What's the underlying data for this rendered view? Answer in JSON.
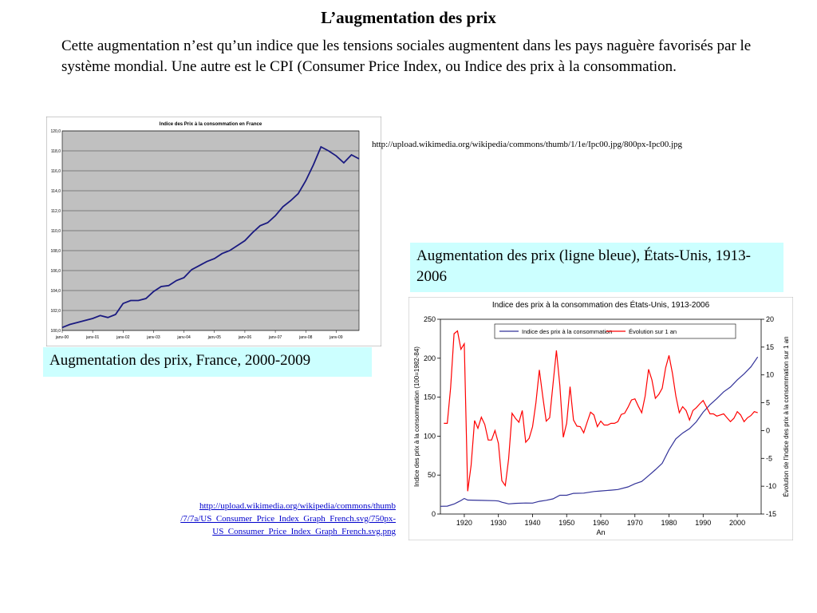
{
  "slide": {
    "title": "L’augmentation des prix",
    "intro": "Cette augmentation n’est qu’un indice que les tensions sociales augmentent dans les pays naguère favorisés par le système mondial. Une autre est le CPI (Consumer Price Index, ou Indice des prix à la consommation.",
    "url_france": "http://upload.wikimedia.org/wikipedia/commons/thumb/1/1e/Ipc00.jpg/800px-Ipc00.jpg",
    "url_us_lines": [
      "http://upload.wikimedia.org/wikipedia/commons/thumb",
      "/7/7a/US_Consumer_Price_Index_Graph_French.svg/750px-",
      "US_Consumer_Price_Index_Graph_French.svg.png"
    ],
    "caption_france": "Augmentation des prix, France, 2000-2009",
    "caption_us": "Augmentation des prix (ligne bleue), États-Unis, 1913-2006"
  },
  "chart_data": [
    {
      "type": "line",
      "title": "Indice des Prix à la consommation en France",
      "ylim": [
        100,
        120
      ],
      "y_ticks": [
        "100,0",
        "102,0",
        "104,0",
        "106,0",
        "108,0",
        "110,0",
        "112,0",
        "114,0",
        "116,0",
        "118,0",
        "120,0"
      ],
      "x_ticks": [
        "janv-00",
        "janv-01",
        "janv-02",
        "janv-03",
        "janv-04",
        "janv-05",
        "janv-06",
        "janv-07",
        "janv-08",
        "janv-09"
      ],
      "x_range": [
        2000,
        2009.75
      ],
      "grid": true,
      "background": "#c0c0c0",
      "series": [
        {
          "color": "#1a1a80",
          "points": [
            [
              2000.0,
              100.3
            ],
            [
              2000.25,
              100.6
            ],
            [
              2000.5,
              100.8
            ],
            [
              2000.75,
              101.0
            ],
            [
              2001.0,
              101.2
            ],
            [
              2001.25,
              101.5
            ],
            [
              2001.5,
              101.3
            ],
            [
              2001.75,
              101.6
            ],
            [
              2002.0,
              102.7
            ],
            [
              2002.25,
              103.0
            ],
            [
              2002.5,
              103.0
            ],
            [
              2002.75,
              103.2
            ],
            [
              2003.0,
              103.9
            ],
            [
              2003.25,
              104.4
            ],
            [
              2003.5,
              104.5
            ],
            [
              2003.75,
              105.0
            ],
            [
              2004.0,
              105.3
            ],
            [
              2004.25,
              106.1
            ],
            [
              2004.5,
              106.5
            ],
            [
              2004.75,
              106.9
            ],
            [
              2005.0,
              107.2
            ],
            [
              2005.25,
              107.7
            ],
            [
              2005.5,
              108.0
            ],
            [
              2005.75,
              108.5
            ],
            [
              2006.0,
              109.0
            ],
            [
              2006.25,
              109.8
            ],
            [
              2006.5,
              110.5
            ],
            [
              2006.75,
              110.8
            ],
            [
              2007.0,
              111.5
            ],
            [
              2007.25,
              112.4
            ],
            [
              2007.5,
              113.0
            ],
            [
              2007.75,
              113.7
            ],
            [
              2008.0,
              115.0
            ],
            [
              2008.25,
              116.6
            ],
            [
              2008.5,
              118.4
            ],
            [
              2008.75,
              118.0
            ],
            [
              2009.0,
              117.5
            ],
            [
              2009.25,
              116.8
            ],
            [
              2009.5,
              117.6
            ],
            [
              2009.75,
              117.2
            ]
          ]
        }
      ]
    },
    {
      "type": "line",
      "title": "Indice des prix à la consommation des États-Unis, 1913-2006",
      "xlabel": "An",
      "ylabel": "Indice des prix à la consommation (100=1982-84)",
      "ylabel_right": "Évolution de l'indice des prix à la consommation sur 1 an",
      "xlim": [
        1913,
        2007
      ],
      "ylim": [
        0,
        250
      ],
      "ylim_right": [
        -15,
        20
      ],
      "x_ticks": [
        1920,
        1930,
        1940,
        1950,
        1960,
        1970,
        1980,
        1990,
        2000
      ],
      "y_ticks": [
        0,
        50,
        100,
        150,
        200,
        250
      ],
      "y_ticks_right": [
        -15,
        -10,
        -5,
        0,
        5,
        10,
        15,
        20
      ],
      "legend_position": "top",
      "series": [
        {
          "name": "Indice des prix à la consommation",
          "color": "#333399",
          "axis": "left",
          "points": [
            [
              1913,
              9.9
            ],
            [
              1915,
              10.1
            ],
            [
              1917,
              12.8
            ],
            [
              1918,
              15.1
            ],
            [
              1919,
              17.3
            ],
            [
              1920,
              20.0
            ],
            [
              1921,
              17.9
            ],
            [
              1925,
              17.5
            ],
            [
              1929,
              17.1
            ],
            [
              1930,
              16.7
            ],
            [
              1931,
              15.2
            ],
            [
              1933,
              13.0
            ],
            [
              1935,
              13.7
            ],
            [
              1938,
              14.1
            ],
            [
              1940,
              14.0
            ],
            [
              1942,
              16.3
            ],
            [
              1944,
              17.6
            ],
            [
              1946,
              19.5
            ],
            [
              1948,
              24.1
            ],
            [
              1950,
              24.1
            ],
            [
              1952,
              26.5
            ],
            [
              1955,
              26.8
            ],
            [
              1958,
              28.9
            ],
            [
              1960,
              29.6
            ],
            [
              1963,
              30.6
            ],
            [
              1965,
              31.5
            ],
            [
              1968,
              34.8
            ],
            [
              1970,
              38.8
            ],
            [
              1972,
              41.8
            ],
            [
              1974,
              49.3
            ],
            [
              1976,
              56.9
            ],
            [
              1978,
              65.2
            ],
            [
              1980,
              82.4
            ],
            [
              1982,
              96.5
            ],
            [
              1984,
              103.9
            ],
            [
              1986,
              109.6
            ],
            [
              1988,
              118.3
            ],
            [
              1990,
              130.7
            ],
            [
              1992,
              140.3
            ],
            [
              1994,
              148.2
            ],
            [
              1996,
              156.9
            ],
            [
              1998,
              163.0
            ],
            [
              2000,
              172.2
            ],
            [
              2002,
              179.9
            ],
            [
              2004,
              188.9
            ],
            [
              2006,
              201.6
            ]
          ]
        },
        {
          "name": "Évolution sur 1 an",
          "color": "#ff0000",
          "axis": "right",
          "points": [
            [
              1914,
              1.3
            ],
            [
              1915,
              1.3
            ],
            [
              1916,
              7.7
            ],
            [
              1917,
              17.4
            ],
            [
              1918,
              17.9
            ],
            [
              1919,
              14.6
            ],
            [
              1920,
              15.6
            ],
            [
              1921,
              -10.9
            ],
            [
              1922,
              -6.2
            ],
            [
              1923,
              1.8
            ],
            [
              1924,
              0.4
            ],
            [
              1925,
              2.4
            ],
            [
              1926,
              1.1
            ],
            [
              1927,
              -1.7
            ],
            [
              1928,
              -1.7
            ],
            [
              1929,
              0.0
            ],
            [
              1930,
              -2.3
            ],
            [
              1931,
              -9.0
            ],
            [
              1932,
              -9.9
            ],
            [
              1933,
              -5.1
            ],
            [
              1934,
              3.1
            ],
            [
              1935,
              2.2
            ],
            [
              1936,
              1.5
            ],
            [
              1937,
              3.6
            ],
            [
              1938,
              -2.1
            ],
            [
              1939,
              -1.4
            ],
            [
              1940,
              0.7
            ],
            [
              1941,
              5.0
            ],
            [
              1942,
              10.9
            ],
            [
              1943,
              6.1
            ],
            [
              1944,
              1.7
            ],
            [
              1945,
              2.3
            ],
            [
              1946,
              8.3
            ],
            [
              1947,
              14.4
            ],
            [
              1948,
              8.1
            ],
            [
              1949,
              -1.2
            ],
            [
              1950,
              1.3
            ],
            [
              1951,
              7.9
            ],
            [
              1952,
              1.9
            ],
            [
              1953,
              0.8
            ],
            [
              1954,
              0.7
            ],
            [
              1955,
              -0.4
            ],
            [
              1956,
              1.5
            ],
            [
              1957,
              3.3
            ],
            [
              1958,
              2.8
            ],
            [
              1959,
              0.7
            ],
            [
              1960,
              1.7
            ],
            [
              1961,
              1.0
            ],
            [
              1962,
              1.0
            ],
            [
              1963,
              1.3
            ],
            [
              1964,
              1.3
            ],
            [
              1965,
              1.6
            ],
            [
              1966,
              2.9
            ],
            [
              1967,
              3.1
            ],
            [
              1968,
              4.2
            ],
            [
              1969,
              5.5
            ],
            [
              1970,
              5.7
            ],
            [
              1971,
              4.4
            ],
            [
              1972,
              3.2
            ],
            [
              1973,
              6.2
            ],
            [
              1974,
              11.0
            ],
            [
              1975,
              9.1
            ],
            [
              1976,
              5.8
            ],
            [
              1977,
              6.5
            ],
            [
              1978,
              7.6
            ],
            [
              1979,
              11.3
            ],
            [
              1980,
              13.5
            ],
            [
              1981,
              10.3
            ],
            [
              1982,
              6.2
            ],
            [
              1983,
              3.2
            ],
            [
              1984,
              4.3
            ],
            [
              1985,
              3.6
            ],
            [
              1986,
              1.9
            ],
            [
              1987,
              3.6
            ],
            [
              1988,
              4.1
            ],
            [
              1989,
              4.8
            ],
            [
              1990,
              5.4
            ],
            [
              1991,
              4.2
            ],
            [
              1992,
              3.0
            ],
            [
              1993,
              3.0
            ],
            [
              1994,
              2.6
            ],
            [
              1995,
              2.8
            ],
            [
              1996,
              3.0
            ],
            [
              1997,
              2.3
            ],
            [
              1998,
              1.6
            ],
            [
              1999,
              2.2
            ],
            [
              2000,
              3.4
            ],
            [
              2001,
              2.8
            ],
            [
              2002,
              1.6
            ],
            [
              2003,
              2.3
            ],
            [
              2004,
              2.7
            ],
            [
              2005,
              3.4
            ],
            [
              2006,
              3.2
            ]
          ]
        }
      ]
    }
  ]
}
